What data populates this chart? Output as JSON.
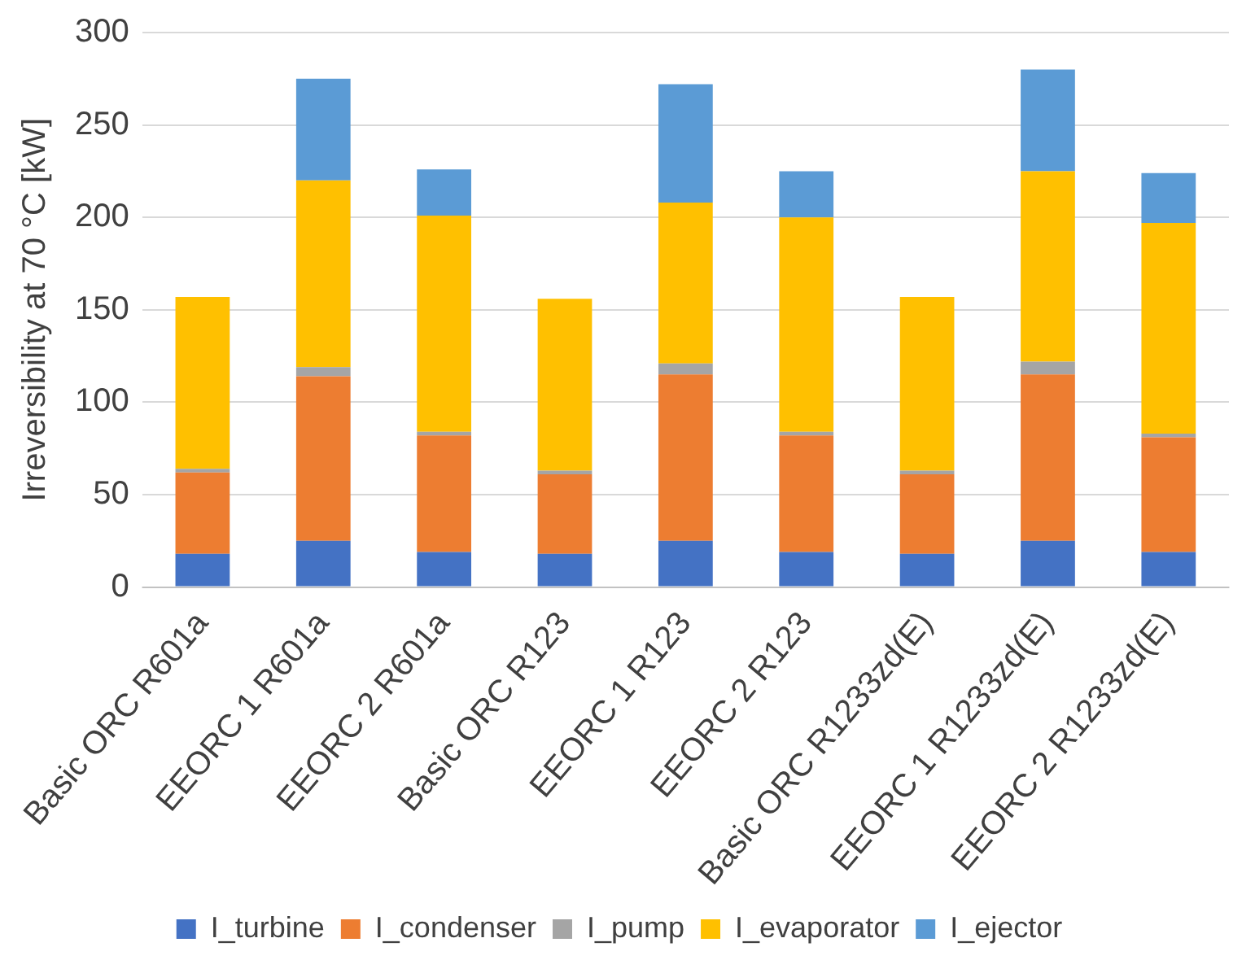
{
  "chart_data": {
    "type": "bar",
    "stacked": true,
    "ylabel": "Irreversibility at 70 °C [kW]",
    "categories": [
      "Basic ORC R601a",
      "EEORC 1 R601a",
      "EEORC 2 R601a",
      "Basic ORC R123",
      "EEORC 1 R123",
      "EEORC 2 R123",
      "Basic ORC R1233zd(E)",
      "EEORC 1 R1233zd(E)",
      "EEORC 2 R1233zd(E)"
    ],
    "series": [
      {
        "name": "I_turbine",
        "color": "#4472c4",
        "values": [
          18,
          25,
          19,
          18,
          25,
          19,
          18,
          25,
          19
        ]
      },
      {
        "name": "I_condenser",
        "color": "#ed7d31",
        "values": [
          44,
          89,
          63,
          43,
          90,
          63,
          43,
          90,
          62
        ]
      },
      {
        "name": "I_pump",
        "color": "#a5a5a5",
        "values": [
          2,
          5,
          2,
          2,
          6,
          2,
          2,
          7,
          2
        ]
      },
      {
        "name": "I_evaporator",
        "color": "#ffc000",
        "values": [
          93,
          101,
          117,
          93,
          87,
          116,
          94,
          103,
          114
        ]
      },
      {
        "name": "I_ejector",
        "color": "#5b9bd5",
        "values": [
          0,
          55,
          25,
          0,
          64,
          25,
          0,
          55,
          27
        ]
      }
    ],
    "ylim": [
      0,
      300
    ],
    "yticks": [
      0,
      50,
      100,
      150,
      200,
      250,
      300
    ],
    "grid": "y",
    "legend": "bottom"
  }
}
